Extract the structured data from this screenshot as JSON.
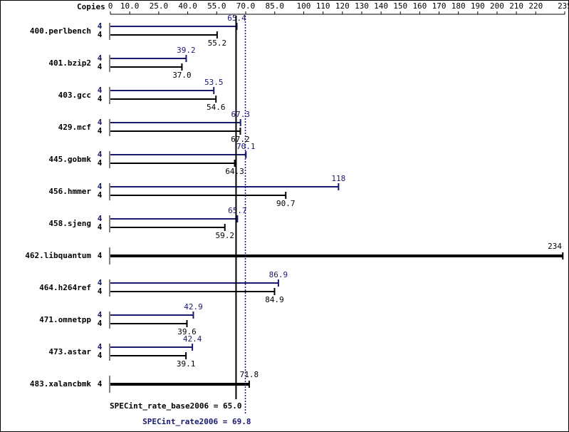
{
  "chart_data": {
    "type": "bar",
    "copies_label": "Copies",
    "categories": [
      "400.perlbench",
      "401.bzip2",
      "403.gcc",
      "429.mcf",
      "445.gobmk",
      "456.hmmer",
      "458.sjeng",
      "462.libquantum",
      "464.h264ref",
      "471.omnetpp",
      "473.astar",
      "483.xalancbmk"
    ],
    "series": [
      {
        "color": "#191970",
        "copies": [
          4,
          4,
          4,
          4,
          4,
          4,
          4,
          null,
          4,
          4,
          4,
          null
        ],
        "values": [
          65.4,
          39.2,
          53.5,
          67.3,
          70.1,
          118,
          65.7,
          null,
          86.9,
          42.9,
          42.4,
          null
        ],
        "value_labels": [
          "65.4",
          "39.2",
          "53.5",
          "67.3",
          "70.1",
          "118",
          "65.7",
          null,
          "86.9",
          "42.9",
          "42.4",
          null
        ]
      },
      {
        "color": "#000000",
        "copies": [
          4,
          4,
          4,
          4,
          4,
          4,
          4,
          4,
          4,
          4,
          4,
          4
        ],
        "values": [
          55.2,
          37.0,
          54.6,
          67.2,
          64.3,
          90.7,
          59.2,
          234,
          84.9,
          39.6,
          39.1,
          71.8
        ],
        "value_labels": [
          "55.2",
          "37.0",
          "54.6",
          "67.2",
          "64.3",
          "90.7",
          "59.2",
          "234",
          "84.9",
          "39.6",
          "39.1",
          "71.8"
        ]
      }
    ],
    "xlim": [
      0,
      235
    ],
    "xticks": [
      0,
      {
        "value": 10,
        "label": "10.0"
      },
      {
        "value": 25,
        "label": "25.0"
      },
      {
        "value": 40,
        "label": "40.0"
      },
      {
        "value": 55,
        "label": "55.0"
      },
      {
        "value": 70,
        "label": "70.0"
      },
      {
        "value": 85,
        "label": "85.0"
      },
      100,
      110,
      120,
      130,
      140,
      150,
      160,
      170,
      180,
      190,
      200,
      210,
      220,
      235
    ],
    "reference_lines": [
      {
        "label": "SPECint_rate_base2006 = 65.0",
        "value": 65.0,
        "color": "#000000",
        "dashed": false
      },
      {
        "label": "SPECint_rate2006 = 69.8",
        "value": 69.8,
        "color": "#191970",
        "dashed": true
      }
    ]
  }
}
